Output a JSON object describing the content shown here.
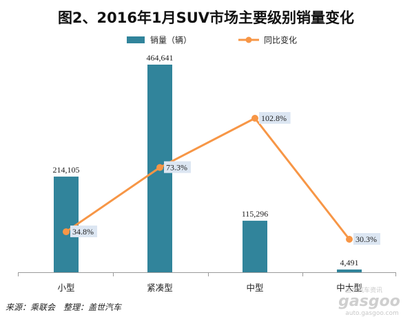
{
  "chart_data": {
    "type": "bar",
    "title": "图2、2016年1月SUV市场主要级别销量变化",
    "categories": [
      "小型",
      "紧凑型",
      "中型",
      "中大型"
    ],
    "series": [
      {
        "name": "销量（辆）",
        "type": "bar",
        "values": [
          214105,
          464641,
          115296,
          4491
        ],
        "labels": [
          "214,105",
          "464,641",
          "115,296",
          "4,491"
        ]
      },
      {
        "name": "同比变化",
        "type": "line",
        "values": [
          34.8,
          73.3,
          102.8,
          30.3
        ],
        "labels": [
          "34.8%",
          "73.3%",
          "102.8%",
          "30.3%"
        ]
      }
    ],
    "legend_position": "top",
    "grid": false,
    "colors": {
      "bar": "#31849B",
      "line": "#F79646",
      "label_bg": "#DCE6F2"
    }
  },
  "source": "来源：乘联会　整理：盖世汽车",
  "watermark": {
    "brand": "gasgoo",
    "tagline": "盖世汽车资讯",
    "url": "auto.gasgoo.com"
  }
}
